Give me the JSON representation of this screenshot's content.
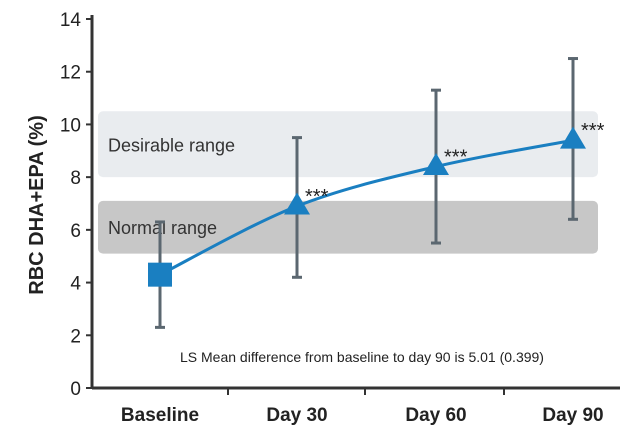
{
  "chart_data": {
    "type": "line",
    "ylabel": "RBC DHA+EPA (%)",
    "ylim": [
      0,
      14
    ],
    "yticks": [
      0,
      2,
      4,
      6,
      8,
      10,
      12,
      14
    ],
    "categories": [
      "Baseline",
      "Day 30",
      "Day 60",
      "Day 90"
    ],
    "series": [
      {
        "values": [
          4.3,
          6.9,
          8.4,
          9.4
        ],
        "error_low": [
          2.3,
          4.2,
          5.5,
          6.4
        ],
        "error_high": [
          6.3,
          9.5,
          11.3,
          12.5
        ],
        "markers": [
          "square",
          "triangle",
          "triangle",
          "triangle"
        ],
        "color": "#1a7fc1"
      }
    ],
    "significance": [
      "",
      "***",
      "***",
      "***"
    ],
    "bands": [
      {
        "label": "Desirable range",
        "ymin": 8,
        "ymax": 10.5,
        "color": "#e9ecef"
      },
      {
        "label": "Normal range",
        "ymin": 5.1,
        "ymax": 7.1,
        "color": "#c7c7c7"
      }
    ],
    "annotation": "LS Mean difference from baseline to day 90 is 5.01 (0.399)",
    "grid": false
  }
}
